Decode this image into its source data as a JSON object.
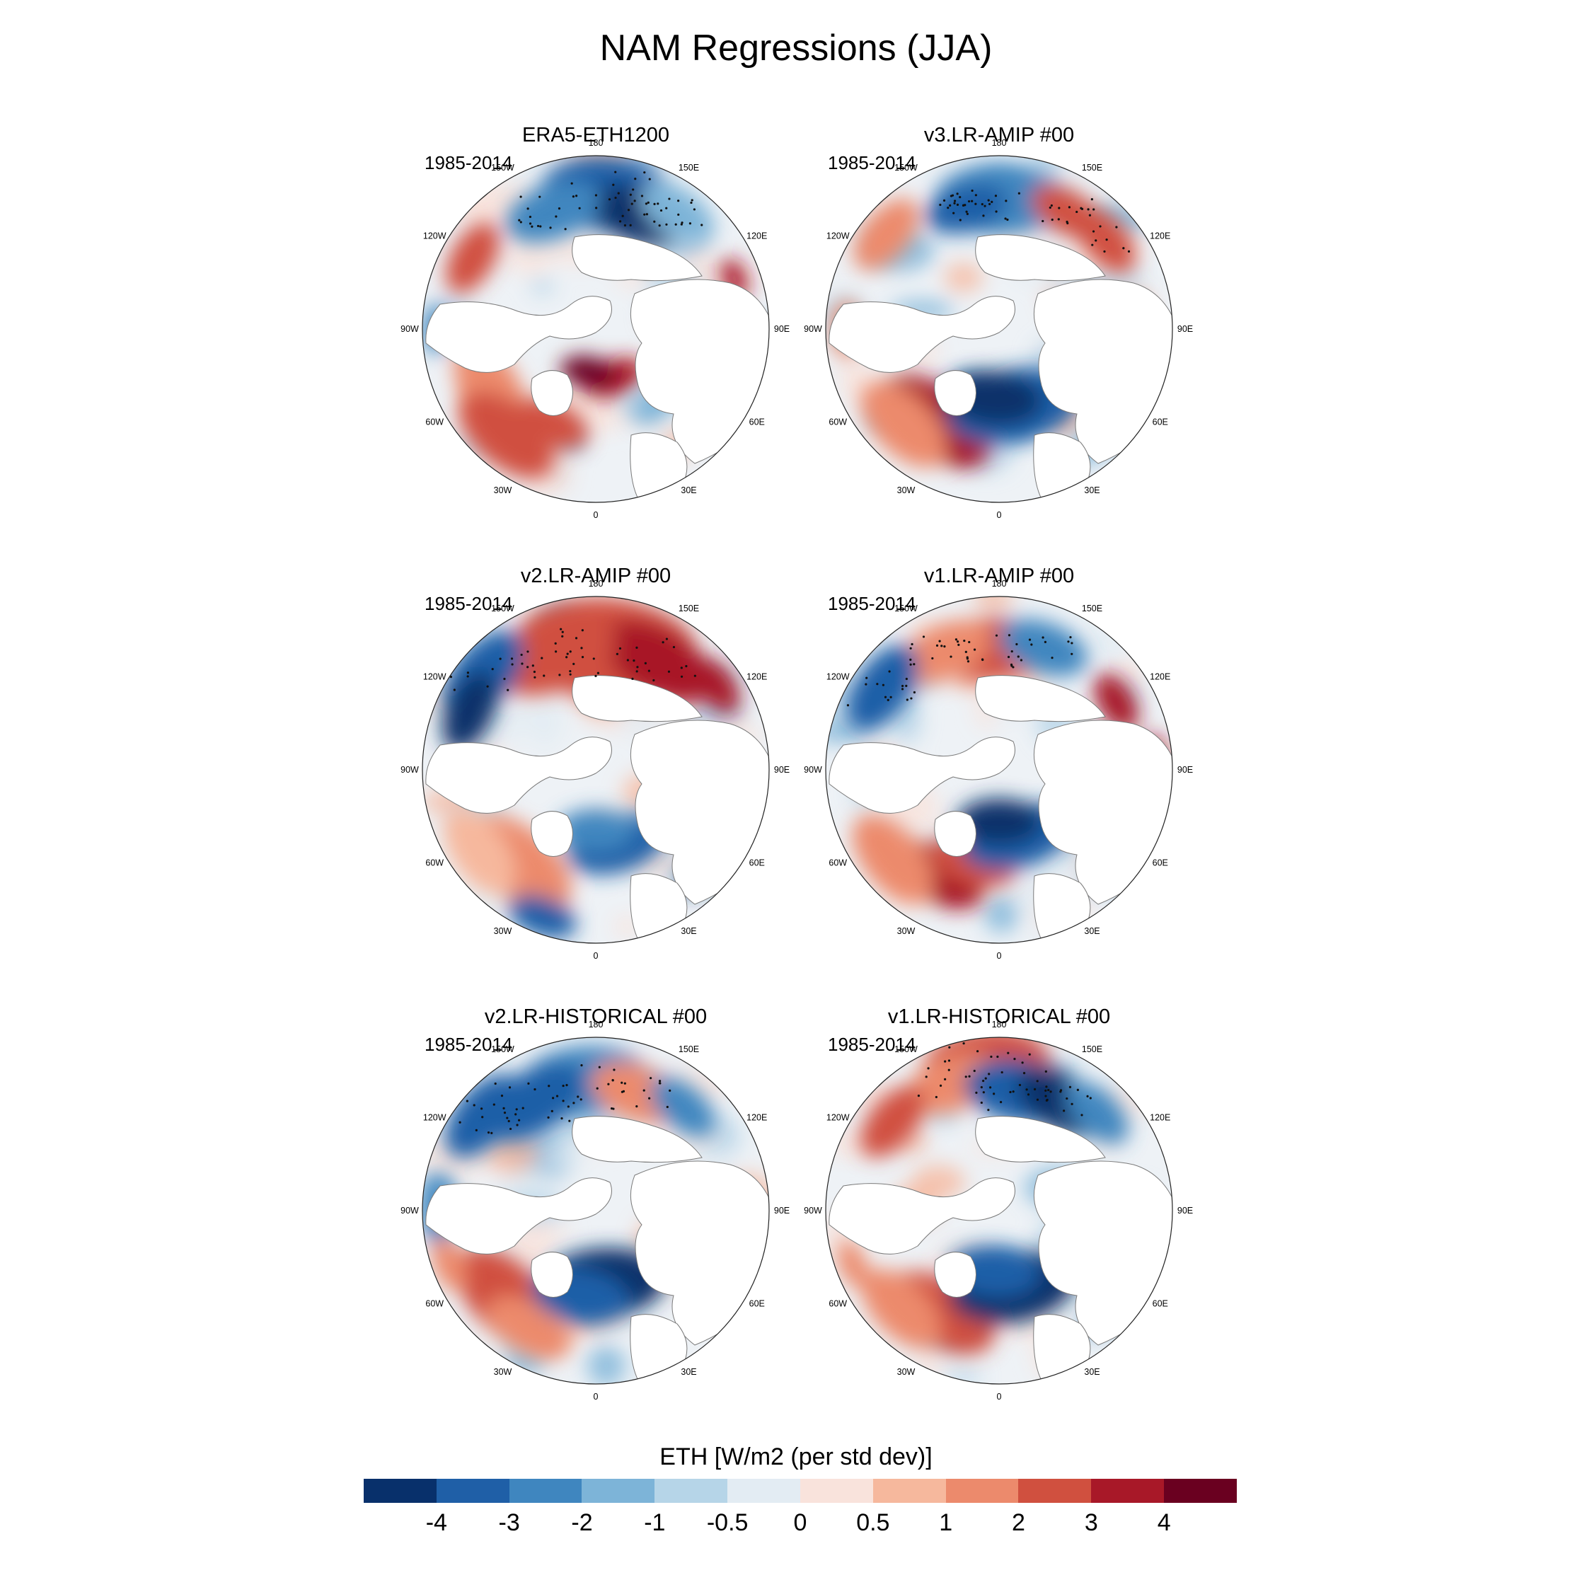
{
  "title": "NAM Regressions (JJA)",
  "colorbar": {
    "label": "ETH [W/m2 (per std dev)]",
    "ticks": [
      "-4",
      "-3",
      "-2",
      "-1",
      "-0.5",
      "0",
      "0.5",
      "1",
      "2",
      "3",
      "4"
    ],
    "colors": [
      "#08306b",
      "#1f5fa7",
      "#3f86bf",
      "#7db4d8",
      "#b6d5e8",
      "#e3ecf3",
      "#f9e3dc",
      "#f6b89d",
      "#ec8a6c",
      "#d0503f",
      "#a81828",
      "#6a0020"
    ]
  },
  "longitude_labels": [
    "180",
    "150E",
    "120E",
    "90E",
    "60E",
    "30E",
    "0",
    "30W",
    "60W",
    "90W",
    "120W",
    "150W"
  ],
  "panels": [
    {
      "title": "ERA5-ETH1200",
      "period": "1985-2014"
    },
    {
      "title": "v3.LR-AMIP  #00",
      "period": "1985-2014"
    },
    {
      "title": "v2.LR-AMIP  #00",
      "period": "1985-2014"
    },
    {
      "title": "v1.LR-AMIP  #00",
      "period": "1985-2014"
    },
    {
      "title": "v2.LR-HISTORICAL  #00",
      "period": "1985-2014"
    },
    {
      "title": "v1.LR-HISTORICAL  #00",
      "period": "1985-2014"
    }
  ]
}
